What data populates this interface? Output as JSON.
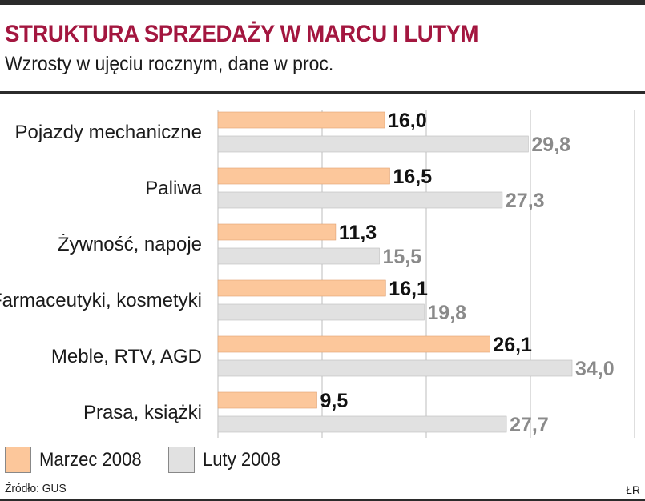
{
  "header": {
    "title": "STRUKTURA SPRZEDAŻY W MARCU I LUTYM",
    "subtitle": "Wzrosty w ujęciu rocznym, dane w proc."
  },
  "footer": {
    "source": "Źródło: GUS",
    "author": "ŁR"
  },
  "colors": {
    "title": "#a3163f",
    "marzec": "#fcc79b",
    "luty": "#e1e1e1",
    "marzec_label": "#111111",
    "luty_label": "#8a8a8a"
  },
  "chart_data": {
    "type": "bar",
    "orientation": "horizontal",
    "categories": [
      "Pojazdy mechaniczne",
      "Paliwa",
      "Żywność, napoje",
      "Farmaceutyki, kosmetyki",
      "Meble, RTV, AGD",
      "Prasa, książki"
    ],
    "series": [
      {
        "name": "Marzec 2008",
        "values": [
          16.0,
          16.5,
          11.3,
          16.1,
          26.1,
          9.5
        ],
        "labels": [
          "16,0",
          "16,5",
          "11,3",
          "16,1",
          "26,1",
          "9,5"
        ]
      },
      {
        "name": "Luty 2008",
        "values": [
          29.8,
          27.3,
          15.5,
          19.8,
          34.0,
          27.7
        ],
        "labels": [
          "29,8",
          "27,3",
          "15,5",
          "19,8",
          "34,0",
          "27,7"
        ]
      }
    ],
    "xlim": [
      0,
      35
    ],
    "grid": true,
    "legend_position": "bottom-left"
  }
}
